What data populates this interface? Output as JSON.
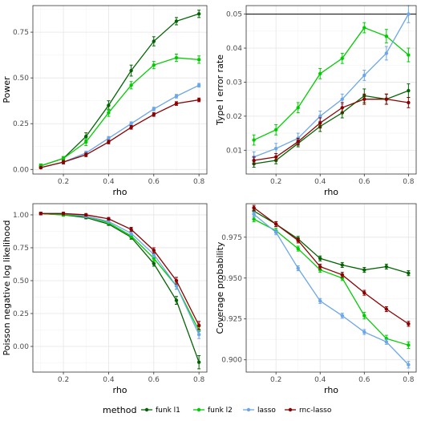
{
  "legend": {
    "title": "method",
    "items": [
      {
        "label": "funk l1",
        "color": "#006400"
      },
      {
        "label": "funk l2",
        "color": "#00CD00"
      },
      {
        "label": "lasso",
        "color": "#6CA6E8"
      },
      {
        "label": "rnc-lasso",
        "color": "#8B0000"
      }
    ]
  },
  "chart_data": [
    {
      "type": "line",
      "xlabel": "rho",
      "ylabel": "Power",
      "xlim": [
        0.065,
        0.835
      ],
      "ylim": [
        -0.025,
        0.895
      ],
      "xticks": [
        0.2,
        0.4,
        0.6,
        0.8
      ],
      "xtick_labels": [
        "0.2",
        "0.4",
        "0.6",
        "0.8"
      ],
      "yticks": [
        0,
        0.25,
        0.5,
        0.75
      ],
      "ytick_labels": [
        "0.00",
        "0.25",
        "0.50",
        "0.75"
      ],
      "grid": true,
      "x": [
        0.1,
        0.2,
        0.3,
        0.4,
        0.5,
        0.6,
        0.7,
        0.8
      ],
      "series": [
        {
          "name": "funk l1",
          "color": "#006400",
          "values": [
            0.02,
            0.06,
            0.18,
            0.35,
            0.54,
            0.7,
            0.81,
            0.85
          ],
          "err": [
            0.01,
            0.01,
            0.02,
            0.025,
            0.03,
            0.025,
            0.02,
            0.02
          ]
        },
        {
          "name": "funk l2",
          "color": "#00CD00",
          "values": [
            0.02,
            0.06,
            0.15,
            0.31,
            0.46,
            0.57,
            0.61,
            0.6
          ],
          "err": [
            0.01,
            0.01,
            0.02,
            0.02,
            0.02,
            0.02,
            0.02,
            0.02
          ]
        },
        {
          "name": "lasso",
          "color": "#6CA6E8",
          "values": [
            0.01,
            0.04,
            0.09,
            0.17,
            0.25,
            0.33,
            0.4,
            0.46
          ],
          "err": [
            0.005,
            0.01,
            0.01,
            0.01,
            0.01,
            0.01,
            0.01,
            0.01
          ]
        },
        {
          "name": "rnc-lasso",
          "color": "#8B0000",
          "values": [
            0.01,
            0.04,
            0.08,
            0.15,
            0.23,
            0.3,
            0.36,
            0.38
          ],
          "err": [
            0.005,
            0.01,
            0.01,
            0.01,
            0.01,
            0.01,
            0.01,
            0.01
          ]
        }
      ]
    },
    {
      "type": "line",
      "xlabel": "rho",
      "ylabel": "Type I error rate",
      "xlim": [
        0.065,
        0.835
      ],
      "ylim": [
        0.003,
        0.0525
      ],
      "xticks": [
        0.2,
        0.4,
        0.6,
        0.8
      ],
      "xtick_labels": [
        "0.2",
        "0.4",
        "0.6",
        "0.8"
      ],
      "yticks": [
        0.01,
        0.02,
        0.03,
        0.04,
        0.05
      ],
      "ytick_labels": [
        "0.01",
        "0.02",
        "0.03",
        "0.04",
        "0.05"
      ],
      "hline": 0.05,
      "grid": true,
      "x": [
        0.1,
        0.2,
        0.3,
        0.4,
        0.5,
        0.6,
        0.7,
        0.8
      ],
      "series": [
        {
          "name": "funk l1",
          "color": "#006400",
          "values": [
            0.006,
            0.007,
            0.012,
            0.017,
            0.021,
            0.026,
            0.025,
            0.0275
          ],
          "err": [
            0.001,
            0.001,
            0.001,
            0.0015,
            0.0015,
            0.002,
            0.0015,
            0.002
          ]
        },
        {
          "name": "funk l2",
          "color": "#00CD00",
          "values": [
            0.013,
            0.016,
            0.0225,
            0.0325,
            0.037,
            0.046,
            0.0435,
            0.038
          ],
          "err": [
            0.0015,
            0.0015,
            0.0015,
            0.0015,
            0.0015,
            0.0015,
            0.002,
            0.002
          ]
        },
        {
          "name": "lasso",
          "color": "#6CA6E8",
          "values": [
            0.008,
            0.0105,
            0.0135,
            0.02,
            0.025,
            0.032,
            0.0385,
            0.05
          ],
          "err": [
            0.0015,
            0.0015,
            0.0015,
            0.0015,
            0.0015,
            0.0015,
            0.002,
            0.0025
          ]
        },
        {
          "name": "rnc-lasso",
          "color": "#8B0000",
          "values": [
            0.007,
            0.008,
            0.0125,
            0.018,
            0.0225,
            0.025,
            0.025,
            0.024
          ],
          "err": [
            0.001,
            0.001,
            0.001,
            0.0015,
            0.0015,
            0.0015,
            0.0015,
            0.0015
          ]
        }
      ]
    },
    {
      "type": "line",
      "xlabel": "rho",
      "ylabel": "Poisson negative log likelihood",
      "xlim": [
        0.065,
        0.835
      ],
      "ylim": [
        -0.195,
        1.085
      ],
      "xticks": [
        0.2,
        0.4,
        0.6,
        0.8
      ],
      "xtick_labels": [
        "0.2",
        "0.4",
        "0.6",
        "0.8"
      ],
      "yticks": [
        0,
        0.25,
        0.5,
        0.75,
        1
      ],
      "ytick_labels": [
        "0.00",
        "0.25",
        "0.50",
        "0.75",
        "1.00"
      ],
      "grid": true,
      "x": [
        0.1,
        0.2,
        0.3,
        0.4,
        0.5,
        0.6,
        0.7,
        0.8
      ],
      "series": [
        {
          "name": "funk l1",
          "color": "#006400",
          "values": [
            1.01,
            1.0,
            0.98,
            0.93,
            0.83,
            0.63,
            0.35,
            -0.12
          ],
          "err": [
            0.01,
            0.01,
            0.01,
            0.01,
            0.015,
            0.02,
            0.03,
            0.05
          ]
        },
        {
          "name": "funk l2",
          "color": "#00CD00",
          "values": [
            1.01,
            1.0,
            0.99,
            0.94,
            0.84,
            0.67,
            0.46,
            0.12
          ],
          "err": [
            0.01,
            0.01,
            0.01,
            0.01,
            0.015,
            0.02,
            0.025,
            0.03
          ]
        },
        {
          "name": "lasso",
          "color": "#6CA6E8",
          "values": [
            1.01,
            1.01,
            0.99,
            0.95,
            0.86,
            0.7,
            0.46,
            0.09
          ],
          "err": [
            0.01,
            0.01,
            0.01,
            0.01,
            0.015,
            0.02,
            0.025,
            0.03
          ]
        },
        {
          "name": "rnc-lasso",
          "color": "#8B0000",
          "values": [
            1.01,
            1.01,
            1.0,
            0.97,
            0.89,
            0.73,
            0.5,
            0.16
          ],
          "err": [
            0.01,
            0.01,
            0.01,
            0.01,
            0.015,
            0.02,
            0.025,
            0.03
          ]
        }
      ]
    },
    {
      "type": "line",
      "xlabel": "rho",
      "ylabel": "Coverage probability",
      "xlim": [
        0.065,
        0.835
      ],
      "ylim": [
        0.8925,
        0.9955
      ],
      "xticks": [
        0.2,
        0.4,
        0.6,
        0.8
      ],
      "xtick_labels": [
        "0.2",
        "0.4",
        "0.6",
        "0.8"
      ],
      "yticks": [
        0.9,
        0.925,
        0.95,
        0.975
      ],
      "ytick_labels": [
        "0.900",
        "0.925",
        "0.950",
        "0.975"
      ],
      "grid": true,
      "x": [
        0.1,
        0.2,
        0.3,
        0.4,
        0.5,
        0.6,
        0.7,
        0.8
      ],
      "series": [
        {
          "name": "funk l1",
          "color": "#006400",
          "values": [
            0.991,
            0.983,
            0.974,
            0.962,
            0.958,
            0.955,
            0.957,
            0.953
          ],
          "err": [
            0.0015,
            0.0015,
            0.0015,
            0.0015,
            0.0015,
            0.0015,
            0.0015,
            0.0015
          ]
        },
        {
          "name": "funk l2",
          "color": "#00CD00",
          "values": [
            0.986,
            0.979,
            0.968,
            0.955,
            0.95,
            0.927,
            0.913,
            0.909
          ],
          "err": [
            0.0015,
            0.0015,
            0.0015,
            0.0015,
            0.0015,
            0.002,
            0.002,
            0.002
          ]
        },
        {
          "name": "lasso",
          "color": "#6CA6E8",
          "values": [
            0.989,
            0.978,
            0.956,
            0.936,
            0.927,
            0.917,
            0.911,
            0.897
          ],
          "err": [
            0.0015,
            0.0015,
            0.0015,
            0.0015,
            0.0015,
            0.0015,
            0.0015,
            0.002
          ]
        },
        {
          "name": "rnc-lasso",
          "color": "#8B0000",
          "values": [
            0.993,
            0.983,
            0.973,
            0.957,
            0.952,
            0.941,
            0.931,
            0.922
          ],
          "err": [
            0.0015,
            0.0015,
            0.0015,
            0.0015,
            0.0015,
            0.0015,
            0.0015,
            0.0015
          ]
        }
      ]
    }
  ]
}
